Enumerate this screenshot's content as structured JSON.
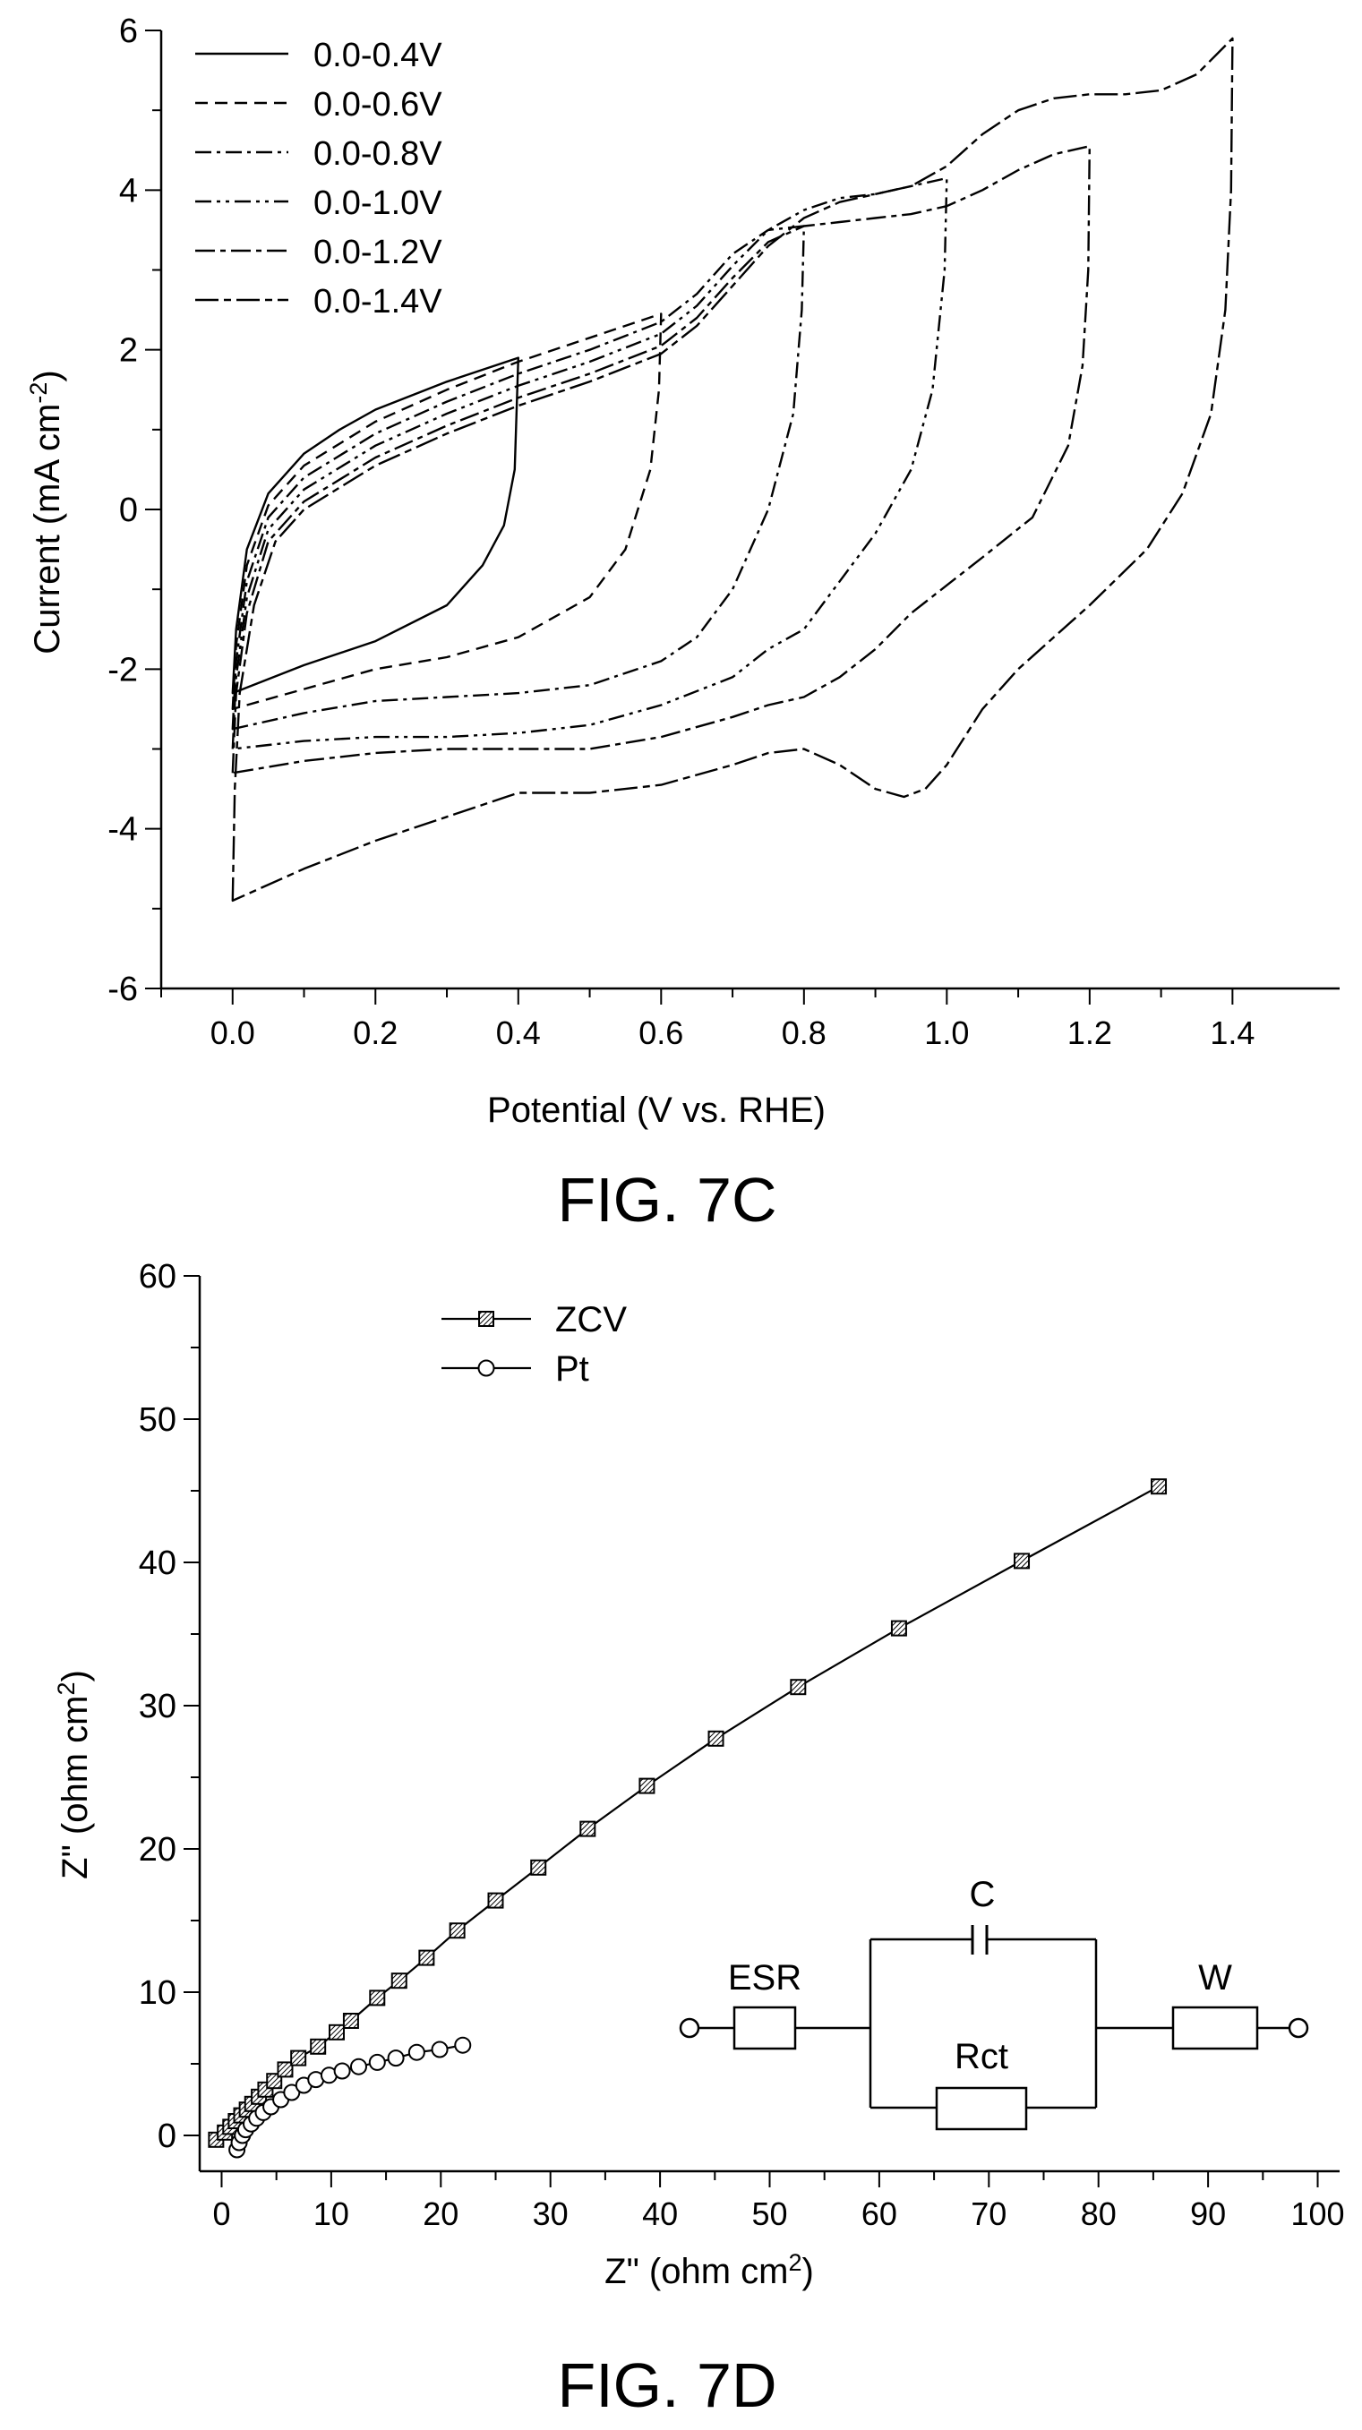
{
  "charts": {
    "cv": {
      "figure_label": "FIG. 7C",
      "xlabel": "Potential (V vs. RHE)",
      "ylabel_main": "Current (mA cm",
      "ylabel_sup": "-2",
      "ylabel_end": ")",
      "xticks": [
        "0.0",
        "0.2",
        "0.4",
        "0.6",
        "0.8",
        "1.0",
        "1.2",
        "1.4"
      ],
      "yticks": [
        "6",
        "4",
        "2",
        "0",
        "-2",
        "-4",
        "-6"
      ],
      "legend": [
        "0.0-0.4V",
        "0.0-0.6V",
        "0.0-0.8V",
        "0.0-1.0V",
        "0.0-1.2V",
        "0.0-1.4V"
      ]
    },
    "eis": {
      "figure_label": "FIG. 7D",
      "xlabel_main": "Z\" (ohm cm",
      "xlabel_sup": "2",
      "xlabel_end": ")",
      "ylabel_main": "Z\" (ohm cm",
      "ylabel_sup": "2",
      "ylabel_end": ")",
      "xticks": [
        "0",
        "10",
        "20",
        "30",
        "40",
        "50",
        "60",
        "70",
        "80",
        "90",
        "100"
      ],
      "yticks": [
        "60",
        "50",
        "40",
        "30",
        "20",
        "10",
        "0"
      ],
      "legend": [
        "ZCV",
        "Pt"
      ],
      "circuit": {
        "esr": "ESR",
        "c": "C",
        "rct": "Rct",
        "w": "W"
      }
    }
  },
  "chart_data": [
    {
      "type": "line",
      "xlabel": "Potential (V vs. RHE)",
      "ylabel": "Current (mA cm-2)",
      "xlim": [
        -0.1,
        1.55
      ],
      "ylim": [
        -6,
        6
      ],
      "legend_position": "top-left",
      "series": [
        {
          "name": "0.0-0.4V",
          "anodic": [
            [
              0.0,
              -2.3
            ],
            [
              0.005,
              -1.5
            ],
            [
              0.02,
              -0.5
            ],
            [
              0.05,
              0.2
            ],
            [
              0.1,
              0.7
            ],
            [
              0.15,
              1.0
            ],
            [
              0.2,
              1.25
            ],
            [
              0.3,
              1.6
            ],
            [
              0.4,
              1.9
            ]
          ],
          "cathodic": [
            [
              0.4,
              1.9
            ],
            [
              0.395,
              0.5
            ],
            [
              0.38,
              -0.2
            ],
            [
              0.35,
              -0.7
            ],
            [
              0.3,
              -1.2
            ],
            [
              0.2,
              -1.65
            ],
            [
              0.1,
              -1.95
            ],
            [
              0.0,
              -2.3
            ]
          ]
        },
        {
          "name": "0.0-0.6V",
          "anodic": [
            [
              0.0,
              -2.5
            ],
            [
              0.005,
              -1.7
            ],
            [
              0.02,
              -0.7
            ],
            [
              0.05,
              0.05
            ],
            [
              0.1,
              0.55
            ],
            [
              0.2,
              1.1
            ],
            [
              0.3,
              1.5
            ],
            [
              0.4,
              1.85
            ],
            [
              0.5,
              2.15
            ],
            [
              0.6,
              2.45
            ]
          ],
          "cathodic": [
            [
              0.6,
              2.45
            ],
            [
              0.597,
              1.5
            ],
            [
              0.585,
              0.5
            ],
            [
              0.55,
              -0.5
            ],
            [
              0.5,
              -1.1
            ],
            [
              0.4,
              -1.6
            ],
            [
              0.3,
              -1.85
            ],
            [
              0.2,
              -2.0
            ],
            [
              0.1,
              -2.25
            ],
            [
              0.0,
              -2.5
            ]
          ]
        },
        {
          "name": "0.0-0.8V",
          "anodic": [
            [
              0.0,
              -2.75
            ],
            [
              0.005,
              -1.9
            ],
            [
              0.02,
              -0.9
            ],
            [
              0.05,
              -0.1
            ],
            [
              0.1,
              0.4
            ],
            [
              0.2,
              0.95
            ],
            [
              0.3,
              1.35
            ],
            [
              0.4,
              1.7
            ],
            [
              0.5,
              2.0
            ],
            [
              0.6,
              2.35
            ],
            [
              0.65,
              2.7
            ],
            [
              0.7,
              3.2
            ],
            [
              0.75,
              3.5
            ],
            [
              0.8,
              3.55
            ]
          ],
          "cathodic": [
            [
              0.8,
              3.55
            ],
            [
              0.797,
              2.5
            ],
            [
              0.785,
              1.2
            ],
            [
              0.75,
              0.0
            ],
            [
              0.7,
              -1.0
            ],
            [
              0.65,
              -1.6
            ],
            [
              0.6,
              -1.9
            ],
            [
              0.5,
              -2.2
            ],
            [
              0.4,
              -2.3
            ],
            [
              0.3,
              -2.35
            ],
            [
              0.2,
              -2.4
            ],
            [
              0.1,
              -2.55
            ],
            [
              0.0,
              -2.75
            ]
          ]
        },
        {
          "name": "0.0-1.0V",
          "anodic": [
            [
              0.0,
              -3.0
            ],
            [
              0.005,
              -2.1
            ],
            [
              0.02,
              -1.1
            ],
            [
              0.05,
              -0.25
            ],
            [
              0.1,
              0.25
            ],
            [
              0.2,
              0.8
            ],
            [
              0.3,
              1.2
            ],
            [
              0.4,
              1.55
            ],
            [
              0.5,
              1.85
            ],
            [
              0.6,
              2.2
            ],
            [
              0.65,
              2.55
            ],
            [
              0.7,
              3.05
            ],
            [
              0.75,
              3.5
            ],
            [
              0.8,
              3.75
            ],
            [
              0.85,
              3.9
            ],
            [
              0.9,
              3.95
            ],
            [
              0.95,
              4.05
            ],
            [
              1.0,
              4.15
            ]
          ],
          "cathodic": [
            [
              1.0,
              4.15
            ],
            [
              0.997,
              3.0
            ],
            [
              0.98,
              1.5
            ],
            [
              0.95,
              0.5
            ],
            [
              0.9,
              -0.3
            ],
            [
              0.85,
              -0.9
            ],
            [
              0.8,
              -1.5
            ],
            [
              0.75,
              -1.75
            ],
            [
              0.7,
              -2.1
            ],
            [
              0.6,
              -2.45
            ],
            [
              0.5,
              -2.7
            ],
            [
              0.4,
              -2.8
            ],
            [
              0.3,
              -2.85
            ],
            [
              0.2,
              -2.85
            ],
            [
              0.1,
              -2.9
            ],
            [
              0.0,
              -3.0
            ]
          ]
        },
        {
          "name": "0.0-1.2V",
          "anodic": [
            [
              0.0,
              -3.3
            ],
            [
              0.005,
              -2.3
            ],
            [
              0.02,
              -1.3
            ],
            [
              0.05,
              -0.4
            ],
            [
              0.1,
              0.1
            ],
            [
              0.2,
              0.65
            ],
            [
              0.3,
              1.05
            ],
            [
              0.4,
              1.4
            ],
            [
              0.5,
              1.7
            ],
            [
              0.6,
              2.05
            ],
            [
              0.65,
              2.4
            ],
            [
              0.7,
              2.9
            ],
            [
              0.75,
              3.35
            ],
            [
              0.8,
              3.55
            ],
            [
              0.85,
              3.6
            ],
            [
              0.9,
              3.65
            ],
            [
              0.95,
              3.7
            ],
            [
              1.0,
              3.8
            ],
            [
              1.05,
              4.0
            ],
            [
              1.1,
              4.25
            ],
            [
              1.15,
              4.45
            ],
            [
              1.2,
              4.55
            ]
          ],
          "cathodic": [
            [
              1.2,
              4.55
            ],
            [
              1.198,
              3.0
            ],
            [
              1.19,
              1.8
            ],
            [
              1.17,
              0.8
            ],
            [
              1.12,
              -0.1
            ],
            [
              1.05,
              -0.6
            ],
            [
              1.0,
              -0.95
            ],
            [
              0.95,
              -1.3
            ],
            [
              0.9,
              -1.75
            ],
            [
              0.85,
              -2.1
            ],
            [
              0.8,
              -2.35
            ],
            [
              0.75,
              -2.45
            ],
            [
              0.7,
              -2.6
            ],
            [
              0.6,
              -2.85
            ],
            [
              0.5,
              -3.0
            ],
            [
              0.4,
              -3.0
            ],
            [
              0.3,
              -3.0
            ],
            [
              0.2,
              -3.05
            ],
            [
              0.1,
              -3.15
            ],
            [
              0.0,
              -3.3
            ]
          ]
        },
        {
          "name": "0.0-1.4V",
          "anodic": [
            [
              0.0,
              -4.9
            ],
            [
              0.003,
              -3.5
            ],
            [
              0.01,
              -2.3
            ],
            [
              0.03,
              -1.2
            ],
            [
              0.06,
              -0.4
            ],
            [
              0.1,
              0.0
            ],
            [
              0.2,
              0.55
            ],
            [
              0.3,
              0.95
            ],
            [
              0.4,
              1.3
            ],
            [
              0.5,
              1.6
            ],
            [
              0.6,
              1.95
            ],
            [
              0.65,
              2.3
            ],
            [
              0.7,
              2.8
            ],
            [
              0.75,
              3.3
            ],
            [
              0.8,
              3.65
            ],
            [
              0.85,
              3.85
            ],
            [
              0.9,
              3.95
            ],
            [
              0.95,
              4.05
            ],
            [
              1.0,
              4.3
            ],
            [
              1.05,
              4.7
            ],
            [
              1.1,
              5.0
            ],
            [
              1.15,
              5.15
            ],
            [
              1.2,
              5.2
            ],
            [
              1.25,
              5.2
            ],
            [
              1.3,
              5.25
            ],
            [
              1.35,
              5.45
            ],
            [
              1.4,
              5.9
            ]
          ],
          "cathodic": [
            [
              1.4,
              5.9
            ],
            [
              1.398,
              4.0
            ],
            [
              1.39,
              2.5
            ],
            [
              1.37,
              1.2
            ],
            [
              1.33,
              0.2
            ],
            [
              1.28,
              -0.5
            ],
            [
              1.2,
              -1.2
            ],
            [
              1.1,
              -2.0
            ],
            [
              1.05,
              -2.5
            ],
            [
              1.0,
              -3.2
            ],
            [
              0.97,
              -3.5
            ],
            [
              0.94,
              -3.6
            ],
            [
              0.9,
              -3.5
            ],
            [
              0.85,
              -3.2
            ],
            [
              0.8,
              -3.0
            ],
            [
              0.75,
              -3.05
            ],
            [
              0.7,
              -3.2
            ],
            [
              0.6,
              -3.45
            ],
            [
              0.5,
              -3.55
            ],
            [
              0.4,
              -3.55
            ],
            [
              0.3,
              -3.85
            ],
            [
              0.2,
              -4.15
            ],
            [
              0.1,
              -4.5
            ],
            [
              0.0,
              -4.9
            ]
          ]
        }
      ]
    },
    {
      "type": "scatter",
      "xlabel": "Z\" (ohm cm2)",
      "ylabel": "Z\" (ohm cm2)",
      "xlim": [
        -2,
        102
      ],
      "ylim": [
        -2.5,
        60
      ],
      "legend_position": "top-left",
      "series": [
        {
          "name": "ZCV",
          "marker": "square",
          "points": [
            [
              -0.5,
              -0.3
            ],
            [
              0.3,
              0.2
            ],
            [
              0.8,
              0.6
            ],
            [
              1.3,
              1.0
            ],
            [
              1.8,
              1.4
            ],
            [
              2.3,
              1.8
            ],
            [
              2.8,
              2.2
            ],
            [
              3.4,
              2.7
            ],
            [
              4.0,
              3.2
            ],
            [
              4.8,
              3.8
            ],
            [
              5.8,
              4.6
            ],
            [
              7.0,
              5.4
            ],
            [
              8.8,
              6.2
            ],
            [
              10.5,
              7.2
            ],
            [
              11.8,
              8.0
            ],
            [
              14.2,
              9.6
            ],
            [
              16.2,
              10.8
            ],
            [
              18.7,
              12.4
            ],
            [
              21.5,
              14.3
            ],
            [
              25.0,
              16.4
            ],
            [
              28.9,
              18.7
            ],
            [
              33.4,
              21.4
            ],
            [
              38.8,
              24.4
            ],
            [
              45.1,
              27.7
            ],
            [
              52.6,
              31.3
            ],
            [
              61.8,
              35.4
            ],
            [
              73.0,
              40.1
            ],
            [
              85.5,
              45.3
            ]
          ]
        },
        {
          "name": "Pt",
          "marker": "circle",
          "points": [
            [
              1.4,
              -1.0
            ],
            [
              1.6,
              -0.5
            ],
            [
              1.9,
              0.0
            ],
            [
              2.2,
              0.4
            ],
            [
              2.7,
              0.8
            ],
            [
              3.2,
              1.2
            ],
            [
              3.8,
              1.6
            ],
            [
              4.5,
              2.0
            ],
            [
              5.4,
              2.5
            ],
            [
              6.4,
              3.0
            ],
            [
              7.5,
              3.5
            ],
            [
              8.6,
              3.9
            ],
            [
              9.8,
              4.2
            ],
            [
              11.0,
              4.5
            ],
            [
              12.5,
              4.8
            ],
            [
              14.2,
              5.1
            ],
            [
              15.9,
              5.4
            ],
            [
              17.8,
              5.8
            ],
            [
              19.9,
              6.0
            ],
            [
              22.0,
              6.3
            ]
          ]
        }
      ]
    }
  ]
}
